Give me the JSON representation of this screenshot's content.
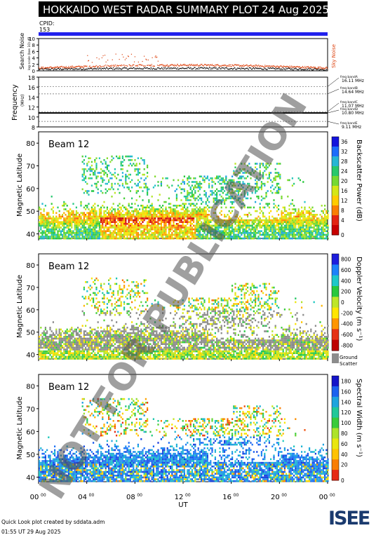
{
  "header": {
    "title": "HOKKAIDO WEST RADAR SUMMARY PLOT",
    "date": "24 Aug 2025"
  },
  "cpid": {
    "label": "CPID:",
    "value": "153"
  },
  "footer": {
    "credit": "Quick Look plot created by sddata.adm",
    "timestamp": "01:55 UT 29 Aug 2025"
  },
  "logo": {
    "text": "ISEE"
  },
  "watermark": "NOT FOR PUBLICATION",
  "colors": {
    "cpid_bar": "#2222ee",
    "sky_noise": "#dd4411",
    "search_noise": "#000000",
    "ground_scatter": "#8c8c8c"
  },
  "chart_data": [
    {
      "type": "line",
      "panel": "noise",
      "ylabel": "Search Noise",
      "ylabel_sub": "log scale (bas 10) dB",
      "right_label": "Sky Noise",
      "ylim": [
        0,
        10
      ],
      "yticks": [
        0,
        2,
        4,
        6,
        8,
        10
      ],
      "x": [
        0,
        2,
        4,
        6,
        8,
        10,
        12,
        14,
        16,
        18,
        20,
        22,
        24
      ],
      "series": [
        {
          "name": "Sky Noise",
          "values": [
            0.9,
            1.0,
            1.1,
            1.4,
            1.7,
            1.9,
            1.8,
            1.9,
            1.6,
            1.5,
            1.3,
            1.1,
            1.0
          ]
        },
        {
          "name": "Search Noise",
          "values": [
            0.3,
            0.3,
            0.4,
            0.5,
            0.6,
            0.6,
            0.5,
            0.5,
            0.4,
            0.4,
            0.4,
            0.3,
            0.3
          ]
        }
      ]
    },
    {
      "type": "line",
      "panel": "frequency",
      "ylabel": "Frequency",
      "ylabel_unit": "(MHz)",
      "ylim": [
        8,
        18
      ],
      "yticks": [
        8,
        10,
        12,
        14,
        16,
        18
      ],
      "bands": [
        {
          "label": "freq bandA",
          "value": "16.11 MHz",
          "mhz": 16.11
        },
        {
          "label": "freq bandB",
          "value": "14.64 MHz",
          "mhz": 14.64
        },
        {
          "label": "freq bandC",
          "value": "11.07 MHz",
          "mhz": 11.07
        },
        {
          "label": "freq bandD",
          "value": "10.80 MHz",
          "mhz": 10.8
        },
        {
          "label": "freq bandE",
          "value": "9.11 MHz",
          "mhz": 9.11
        }
      ],
      "operating_mhz": 10.8
    },
    {
      "type": "heatmap",
      "panel": "power",
      "title": "Beam 12",
      "ylabel": "Magnetic Latitude",
      "ylim": [
        38,
        85
      ],
      "yticks": [
        40,
        50,
        60,
        70,
        80
      ],
      "colorbar_label": "Backscatter Power (dB)",
      "colorbar_ticks": [
        0,
        4,
        8,
        12,
        16,
        20,
        24,
        28,
        32,
        36
      ]
    },
    {
      "type": "heatmap",
      "panel": "velocity",
      "title": "Beam 12",
      "ylabel": "Magnetic Latitude",
      "ylim": [
        38,
        85
      ],
      "yticks": [
        40,
        50,
        60,
        70,
        80
      ],
      "colorbar_label": "Doppler Velocity (m s⁻¹)",
      "colorbar_ticks": [
        800,
        600,
        400,
        200,
        0,
        -200,
        -400,
        -600,
        -800
      ],
      "ground_scatter_label": [
        "Ground",
        "Scatter"
      ]
    },
    {
      "type": "heatmap",
      "panel": "width",
      "title": "Beam 12",
      "ylabel": "Magnetic Latitude",
      "ylim": [
        38,
        85
      ],
      "yticks": [
        40,
        50,
        60,
        70,
        80
      ],
      "colorbar_label": "Spectral Width (m s⁻¹)",
      "colorbar_ticks": [
        0,
        20,
        40,
        60,
        80,
        100,
        120,
        140,
        160,
        180
      ]
    }
  ],
  "xaxis": {
    "label": "UT",
    "xlim": [
      0,
      24
    ],
    "ticks": [
      {
        "h": 0,
        "label": "00",
        "sup": "00"
      },
      {
        "h": 4,
        "label": "04",
        "sup": "00"
      },
      {
        "h": 8,
        "label": "08",
        "sup": "00"
      },
      {
        "h": 12,
        "label": "12",
        "sup": "00"
      },
      {
        "h": 16,
        "label": "16",
        "sup": "00"
      },
      {
        "h": 20,
        "label": "20",
        "sup": "00"
      },
      {
        "h": 24,
        "label": "00",
        "sup": "00"
      }
    ]
  }
}
